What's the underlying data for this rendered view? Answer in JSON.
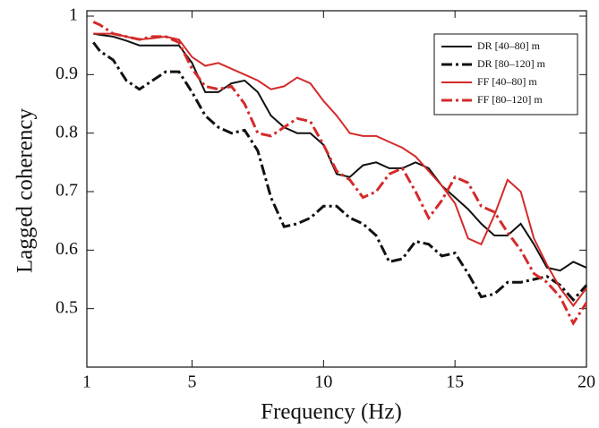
{
  "chart_data": {
    "type": "line",
    "x_label": "Frequency (Hz)",
    "y_label": "Lagged coherency",
    "xlim": [
      1,
      20
    ],
    "ylim": [
      0.4,
      1
    ],
    "xticks": [
      1,
      5,
      10,
      15,
      20
    ],
    "yticks": [
      0.5,
      0.6,
      0.7,
      0.8,
      0.9,
      1
    ],
    "legend": "upper right",
    "x": [
      1.25,
      1.5,
      2,
      2.5,
      3,
      3.5,
      4,
      4.5,
      5,
      5.5,
      6,
      6.5,
      7,
      7.5,
      8,
      8.5,
      9,
      9.5,
      10,
      10.5,
      11,
      11.5,
      12,
      12.5,
      13,
      13.5,
      14,
      14.5,
      15,
      15.5,
      16,
      16.5,
      17,
      17.5,
      18,
      18.5,
      19,
      19.5,
      20
    ],
    "series": [
      {
        "name": "DR [40–80] m",
        "color": "#111111",
        "linestyle": "solid",
        "values": [
          0.97,
          0.968,
          0.965,
          0.958,
          0.95,
          0.95,
          0.95,
          0.95,
          0.92,
          0.87,
          0.87,
          0.885,
          0.89,
          0.87,
          0.83,
          0.81,
          0.8,
          0.8,
          0.78,
          0.73,
          0.725,
          0.745,
          0.75,
          0.74,
          0.74,
          0.75,
          0.74,
          0.71,
          0.69,
          0.67,
          0.645,
          0.625,
          0.625,
          0.645,
          0.61,
          0.57,
          0.565,
          0.58,
          0.57
        ]
      },
      {
        "name": "DR [80–120] m",
        "color": "#111111",
        "linestyle": "dashdot",
        "values": [
          0.955,
          0.94,
          0.925,
          0.89,
          0.875,
          0.89,
          0.905,
          0.905,
          0.87,
          0.83,
          0.81,
          0.8,
          0.805,
          0.77,
          0.69,
          0.64,
          0.645,
          0.655,
          0.675,
          0.675,
          0.655,
          0.645,
          0.625,
          0.58,
          0.585,
          0.615,
          0.61,
          0.59,
          0.595,
          0.56,
          0.52,
          0.525,
          0.545,
          0.545,
          0.55,
          0.555,
          0.54,
          0.515,
          0.54
        ]
      },
      {
        "name": "FF [40–80] m",
        "color": "#d42a2a",
        "linestyle": "solid",
        "values": [
          0.97,
          0.97,
          0.97,
          0.965,
          0.96,
          0.962,
          0.965,
          0.96,
          0.93,
          0.915,
          0.92,
          0.91,
          0.9,
          0.89,
          0.875,
          0.88,
          0.895,
          0.885,
          0.855,
          0.83,
          0.8,
          0.795,
          0.795,
          0.785,
          0.775,
          0.76,
          0.735,
          0.71,
          0.68,
          0.62,
          0.61,
          0.66,
          0.72,
          0.7,
          0.62,
          0.575,
          0.535,
          0.505,
          0.535
        ]
      },
      {
        "name": "FF [80–120] m",
        "color": "#d42a2a",
        "linestyle": "dashdot",
        "values": [
          0.99,
          0.985,
          0.97,
          0.965,
          0.96,
          0.965,
          0.965,
          0.955,
          0.91,
          0.88,
          0.875,
          0.88,
          0.85,
          0.8,
          0.795,
          0.81,
          0.825,
          0.82,
          0.78,
          0.735,
          0.72,
          0.69,
          0.7,
          0.73,
          0.74,
          0.7,
          0.655,
          0.685,
          0.725,
          0.715,
          0.675,
          0.665,
          0.63,
          0.6,
          0.56,
          0.545,
          0.52,
          0.475,
          0.51
        ]
      }
    ]
  }
}
